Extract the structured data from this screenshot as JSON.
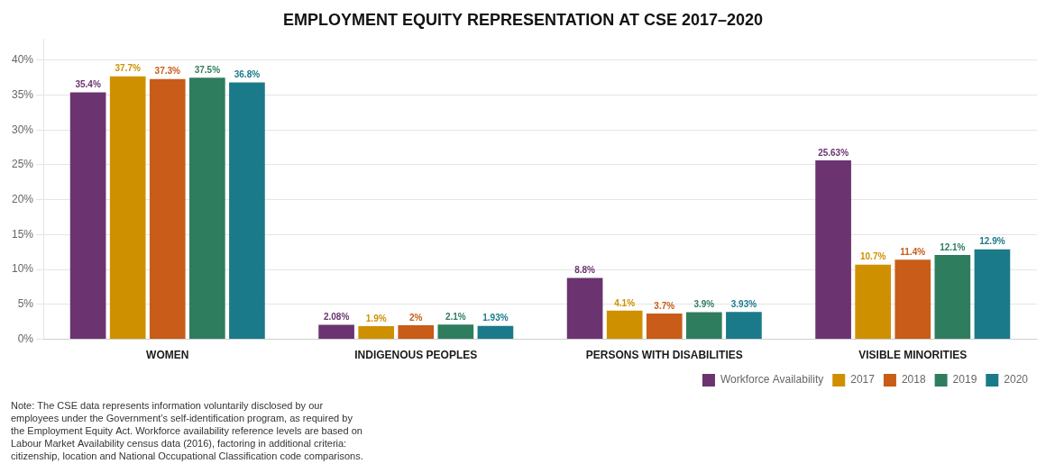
{
  "chart_data": {
    "type": "bar",
    "title": "EMPLOYMENT EQUITY REPRESENTATION AT CSE 2017–2020",
    "categories": [
      "WOMEN",
      "INDIGENOUS PEOPLES",
      "PERSONS WITH DISABILITIES",
      "VISIBLE MINORITIES"
    ],
    "series": [
      {
        "name": "Workforce Availability",
        "color": "#6B3370",
        "values": [
          35.4,
          2.08,
          8.8,
          25.63
        ],
        "value_labels": [
          "35.4%",
          "2.08%",
          "8.8%",
          "25.63%"
        ]
      },
      {
        "name": "2017",
        "color": "#CF9000",
        "values": [
          37.7,
          1.9,
          4.1,
          10.7
        ],
        "value_labels": [
          "37.7%",
          "1.9%",
          "4.1%",
          "10.7%"
        ]
      },
      {
        "name": "2018",
        "color": "#C85C18",
        "values": [
          37.3,
          2.0,
          3.7,
          11.4
        ],
        "value_labels": [
          "37.3%",
          "2%",
          "3.7%",
          "11.4%"
        ]
      },
      {
        "name": "2019",
        "color": "#2E7D5E",
        "values": [
          37.5,
          2.1,
          3.9,
          12.1
        ],
        "value_labels": [
          "37.5%",
          "2.1%",
          "3.9%",
          "12.1%"
        ]
      },
      {
        "name": "2020",
        "color": "#1A7A8A",
        "values": [
          36.8,
          1.93,
          3.93,
          12.9
        ],
        "value_labels": [
          "36.8%",
          "1.93%",
          "3.93%",
          "12.9%"
        ]
      }
    ],
    "ylim": [
      0,
      43
    ],
    "yticks": [
      {
        "value": 0,
        "label": "0%"
      },
      {
        "value": 5,
        "label": "5%"
      },
      {
        "value": 10,
        "label": "10%"
      },
      {
        "value": 15,
        "label": "15%"
      },
      {
        "value": 20,
        "label": "20%"
      },
      {
        "value": 25,
        "label": "25%"
      },
      {
        "value": 30,
        "label": "30%"
      },
      {
        "value": 35,
        "label": "35%"
      },
      {
        "value": 40,
        "label": "40%"
      }
    ],
    "grid": true,
    "legend": "lower right",
    "data_labels": true,
    "annotations": [
      "Note: The CSE data represents information voluntarily disclosed by our\nemployees under the Government’s self-identification program, as required by\nthe Employment Equity Act. Workforce availability reference levels are based on\nLabour Market Availability census data (2016), factoring in additional criteria:\ncitizenship, location and National Occupational Classification code comparisons."
    ]
  }
}
